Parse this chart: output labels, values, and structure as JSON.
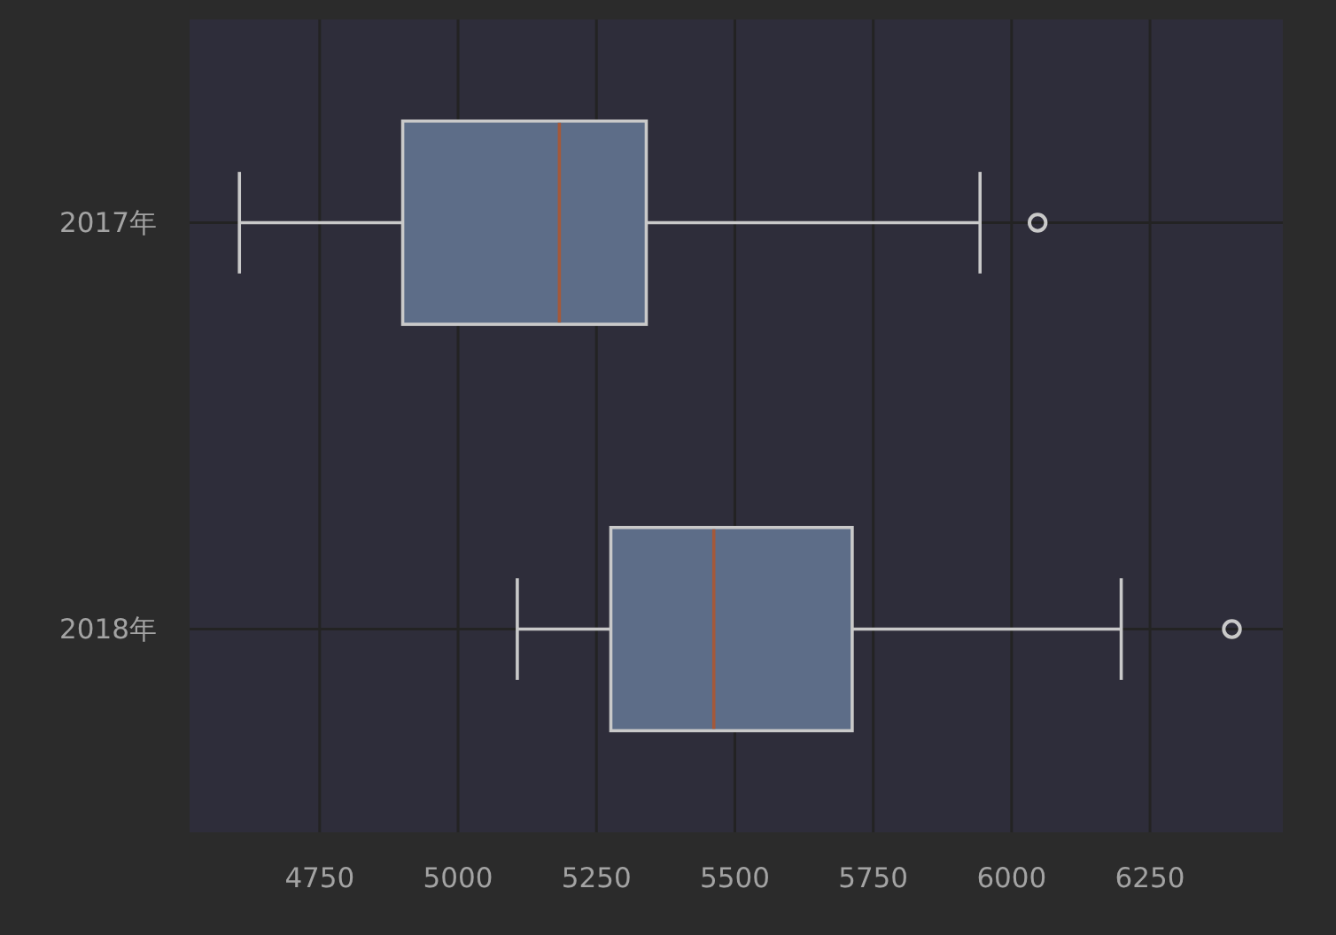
{
  "chart_data": {
    "type": "box",
    "orientation": "horizontal",
    "categories": [
      "2017年",
      "2018年"
    ],
    "boxes": [
      {
        "low": 4605,
        "q1": 4900,
        "median": 5183,
        "q3": 5340,
        "high": 5943,
        "outliers": [
          6047
        ]
      },
      {
        "low": 5107,
        "q1": 5276,
        "median": 5462,
        "q3": 5712,
        "high": 6198,
        "outliers": [
          6398
        ]
      }
    ],
    "color": "#5d6d88",
    "xlim": [
      4515,
      6490
    ],
    "xticks": [
      4750,
      5000,
      5250,
      5500,
      5750,
      6000,
      6250
    ],
    "grid": true
  }
}
